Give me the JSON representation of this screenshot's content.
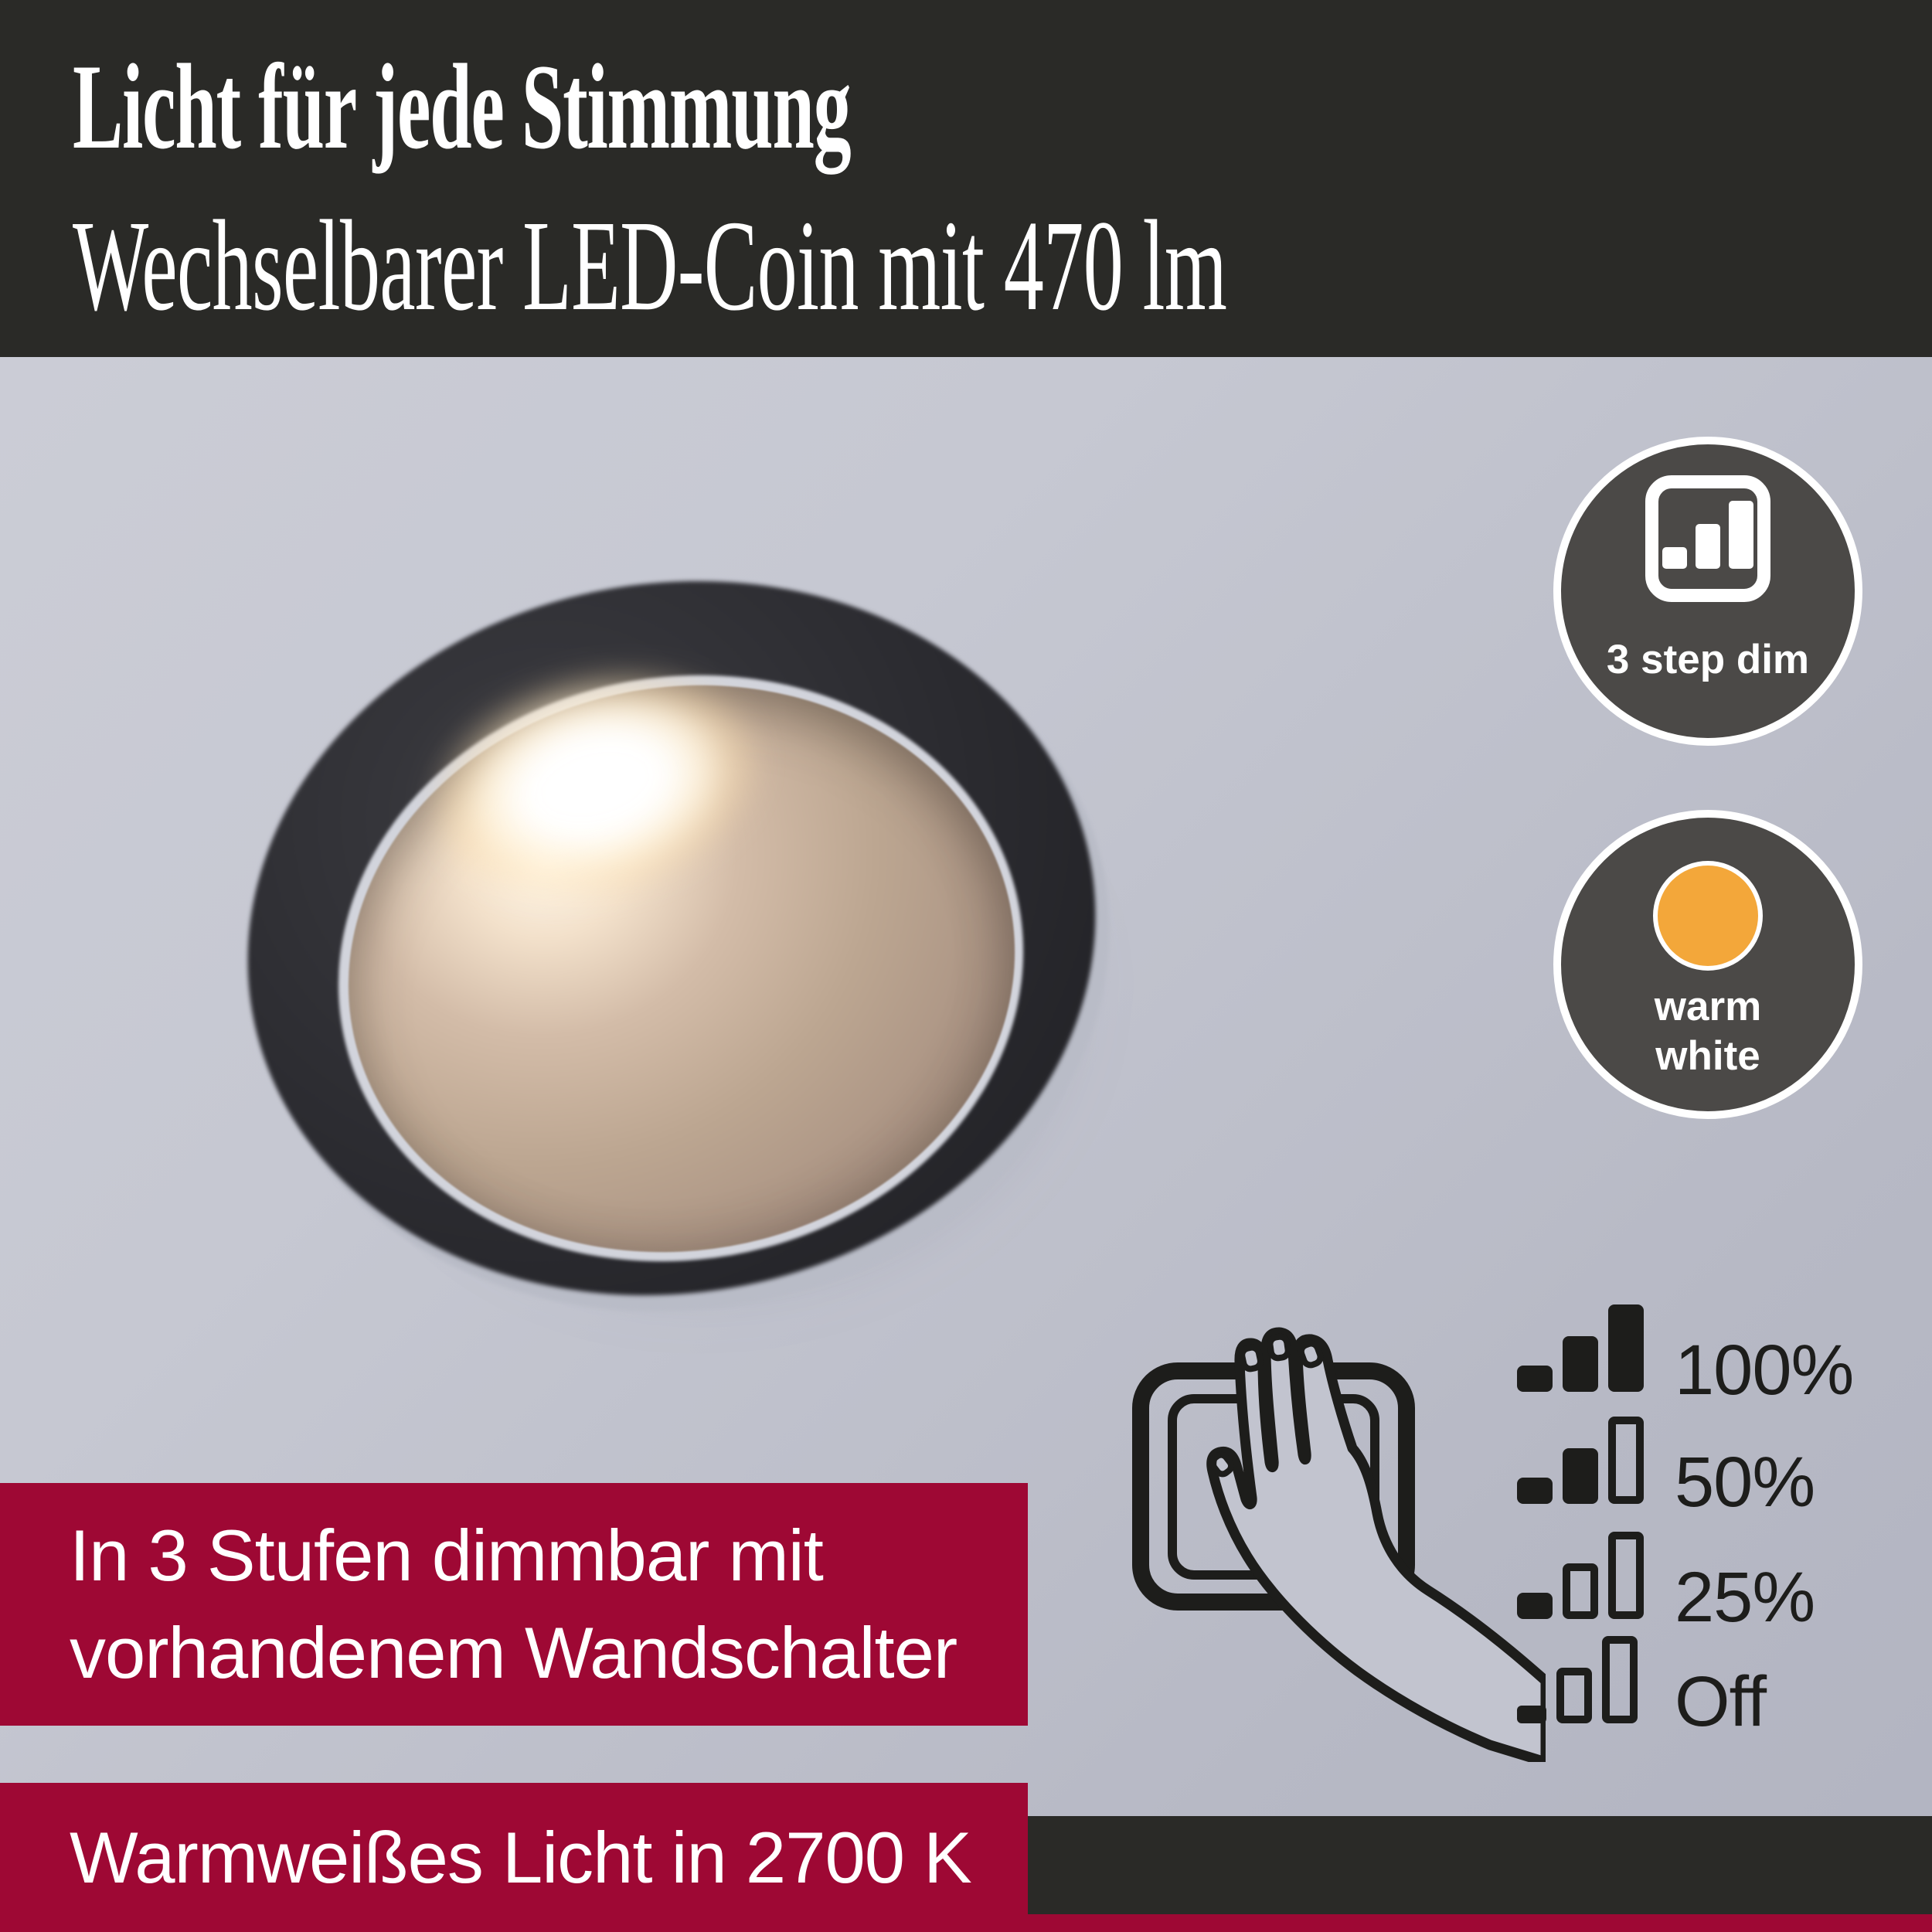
{
  "header": {
    "title": "Licht für jede Stimmung",
    "subtitle": "Wechselbarer LED-Coin mit 470 lm"
  },
  "badges": {
    "dim": {
      "label": "3 step dim",
      "icon": "bar-chart-icon"
    },
    "warm": {
      "line1": "warm",
      "line2": "white",
      "icon": "warm-white-dot-icon"
    }
  },
  "banners": {
    "dimming": {
      "line1": "In 3 Stufen dimmbar mit",
      "line2": "vorhandenem Wandschalter"
    },
    "color_temp": {
      "text": "Warmweißes Licht in 2700 K"
    }
  },
  "dim_levels": [
    {
      "label": "100%",
      "bars": [
        {
          "size": "small",
          "filled": true
        },
        {
          "size": "mid",
          "filled": true
        },
        {
          "size": "large",
          "filled": true
        }
      ]
    },
    {
      "label": "50%",
      "bars": [
        {
          "size": "small",
          "filled": true
        },
        {
          "size": "mid",
          "filled": true
        },
        {
          "size": "large",
          "filled": false
        }
      ]
    },
    {
      "label": "25%",
      "bars": [
        {
          "size": "small",
          "filled": true
        },
        {
          "size": "mid",
          "filled": false
        },
        {
          "size": "large",
          "filled": false
        }
      ]
    },
    {
      "label": "Off",
      "bars": [
        {
          "size": "tiny",
          "filled": true
        },
        {
          "size": "mid",
          "filled": false
        },
        {
          "size": "large",
          "filled": false
        }
      ]
    }
  ],
  "illustration": {
    "name": "hand-touching-wall-switch"
  },
  "colors": {
    "header_bg": "#2a2a27",
    "accent_red": "#9e0834",
    "bg_light": "#cdced7",
    "bg_dark": "#b7b9c5",
    "badge_gray": "#4b4947",
    "warm_orange": "#f3a73a",
    "ink": "#1d1d1b",
    "text_white": "#ffffff"
  }
}
